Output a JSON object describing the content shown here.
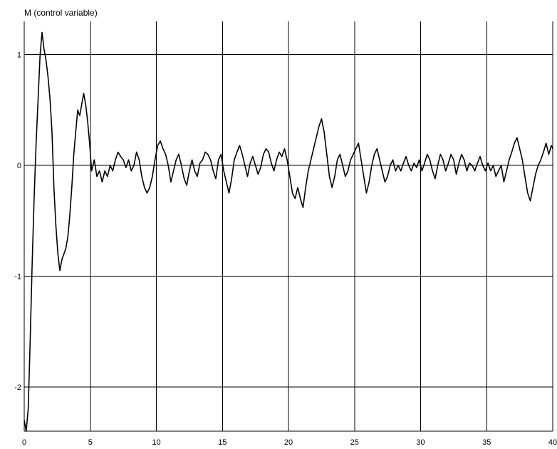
{
  "chart_data": {
    "type": "line",
    "ylabel": "M (control variable)",
    "xlim": [
      0,
      40
    ],
    "ylim": [
      -2.4,
      1.3
    ],
    "grid": true,
    "x_ticks": [
      0,
      5,
      10,
      15,
      20,
      25,
      30,
      35,
      40
    ],
    "x_tick_labels": [
      "0",
      "5",
      "10",
      "15",
      "20",
      "25",
      "30",
      "35",
      "40"
    ],
    "y_ticks": [
      1,
      0,
      -1,
      -2
    ],
    "y_tick_labels": [
      "1",
      "0",
      "-1",
      "-2"
    ],
    "series": [
      {
        "color": "#000000",
        "points": [
          [
            0.0,
            -2.3
          ],
          [
            0.15,
            -2.4
          ],
          [
            0.3,
            -2.2
          ],
          [
            0.45,
            -1.6
          ],
          [
            0.6,
            -0.9
          ],
          [
            0.75,
            -0.3
          ],
          [
            0.9,
            0.2
          ],
          [
            1.05,
            0.6
          ],
          [
            1.2,
            1.0
          ],
          [
            1.35,
            1.2
          ],
          [
            1.5,
            1.05
          ],
          [
            1.65,
            0.95
          ],
          [
            1.8,
            0.8
          ],
          [
            1.95,
            0.6
          ],
          [
            2.1,
            0.3
          ],
          [
            2.25,
            -0.2
          ],
          [
            2.4,
            -0.55
          ],
          [
            2.55,
            -0.8
          ],
          [
            2.7,
            -0.95
          ],
          [
            2.85,
            -0.85
          ],
          [
            3.0,
            -0.8
          ],
          [
            3.15,
            -0.75
          ],
          [
            3.3,
            -0.65
          ],
          [
            3.45,
            -0.45
          ],
          [
            3.6,
            -0.2
          ],
          [
            3.75,
            0.1
          ],
          [
            3.9,
            0.3
          ],
          [
            4.05,
            0.5
          ],
          [
            4.2,
            0.45
          ],
          [
            4.35,
            0.55
          ],
          [
            4.5,
            0.65
          ],
          [
            4.65,
            0.55
          ],
          [
            4.8,
            0.4
          ],
          [
            4.95,
            0.2
          ],
          [
            5.1,
            -0.05
          ],
          [
            5.3,
            0.05
          ],
          [
            5.5,
            -0.1
          ],
          [
            5.7,
            -0.05
          ],
          [
            5.9,
            -0.15
          ],
          [
            6.1,
            -0.05
          ],
          [
            6.3,
            -0.1
          ],
          [
            6.5,
            0.0
          ],
          [
            6.7,
            -0.05
          ],
          [
            6.9,
            0.05
          ],
          [
            7.1,
            0.12
          ],
          [
            7.3,
            0.08
          ],
          [
            7.5,
            0.05
          ],
          [
            7.7,
            -0.02
          ],
          [
            7.9,
            0.05
          ],
          [
            8.1,
            -0.05
          ],
          [
            8.3,
            0.0
          ],
          [
            8.5,
            0.12
          ],
          [
            8.7,
            0.05
          ],
          [
            8.9,
            -0.1
          ],
          [
            9.1,
            -0.2
          ],
          [
            9.3,
            -0.25
          ],
          [
            9.5,
            -0.2
          ],
          [
            9.7,
            -0.1
          ],
          [
            9.9,
            0.05
          ],
          [
            10.1,
            0.18
          ],
          [
            10.3,
            0.22
          ],
          [
            10.5,
            0.15
          ],
          [
            10.7,
            0.1
          ],
          [
            10.9,
            0.0
          ],
          [
            11.1,
            -0.15
          ],
          [
            11.3,
            -0.05
          ],
          [
            11.5,
            0.05
          ],
          [
            11.7,
            0.1
          ],
          [
            11.9,
            0.0
          ],
          [
            12.1,
            -0.12
          ],
          [
            12.3,
            -0.18
          ],
          [
            12.5,
            -0.05
          ],
          [
            12.7,
            0.05
          ],
          [
            12.9,
            -0.05
          ],
          [
            13.1,
            -0.1
          ],
          [
            13.3,
            0.02
          ],
          [
            13.5,
            0.05
          ],
          [
            13.7,
            0.12
          ],
          [
            13.9,
            0.1
          ],
          [
            14.1,
            0.05
          ],
          [
            14.3,
            -0.05
          ],
          [
            14.5,
            -0.12
          ],
          [
            14.7,
            0.05
          ],
          [
            14.9,
            0.1
          ],
          [
            15.1,
            -0.05
          ],
          [
            15.3,
            -0.15
          ],
          [
            15.5,
            -0.25
          ],
          [
            15.7,
            -0.12
          ],
          [
            15.9,
            0.05
          ],
          [
            16.1,
            0.12
          ],
          [
            16.3,
            0.18
          ],
          [
            16.5,
            0.1
          ],
          [
            16.7,
            0.0
          ],
          [
            16.9,
            -0.1
          ],
          [
            17.1,
            0.02
          ],
          [
            17.3,
            0.08
          ],
          [
            17.5,
            0.0
          ],
          [
            17.7,
            -0.08
          ],
          [
            17.9,
            -0.02
          ],
          [
            18.1,
            0.1
          ],
          [
            18.3,
            0.15
          ],
          [
            18.5,
            0.12
          ],
          [
            18.7,
            0.02
          ],
          [
            18.9,
            -0.05
          ],
          [
            19.1,
            0.05
          ],
          [
            19.3,
            0.12
          ],
          [
            19.5,
            0.08
          ],
          [
            19.7,
            0.15
          ],
          [
            19.9,
            0.05
          ],
          [
            20.1,
            -0.1
          ],
          [
            20.3,
            -0.25
          ],
          [
            20.5,
            -0.3
          ],
          [
            20.7,
            -0.2
          ],
          [
            20.9,
            -0.3
          ],
          [
            21.1,
            -0.38
          ],
          [
            21.3,
            -0.2
          ],
          [
            21.5,
            -0.05
          ],
          [
            21.7,
            0.05
          ],
          [
            21.9,
            0.15
          ],
          [
            22.1,
            0.25
          ],
          [
            22.3,
            0.35
          ],
          [
            22.5,
            0.42
          ],
          [
            22.7,
            0.3
          ],
          [
            22.9,
            0.1
          ],
          [
            23.1,
            -0.1
          ],
          [
            23.3,
            -0.2
          ],
          [
            23.5,
            -0.1
          ],
          [
            23.7,
            0.05
          ],
          [
            23.9,
            0.1
          ],
          [
            24.1,
            0.0
          ],
          [
            24.3,
            -0.1
          ],
          [
            24.5,
            -0.05
          ],
          [
            24.7,
            0.05
          ],
          [
            24.9,
            0.1
          ],
          [
            25.1,
            0.15
          ],
          [
            25.3,
            0.2
          ],
          [
            25.5,
            0.05
          ],
          [
            25.7,
            -0.1
          ],
          [
            25.9,
            -0.25
          ],
          [
            26.1,
            -0.15
          ],
          [
            26.3,
            0.0
          ],
          [
            26.5,
            0.1
          ],
          [
            26.7,
            0.15
          ],
          [
            26.9,
            0.05
          ],
          [
            27.1,
            -0.05
          ],
          [
            27.3,
            -0.15
          ],
          [
            27.5,
            -0.1
          ],
          [
            27.7,
            0.0
          ],
          [
            27.9,
            0.05
          ],
          [
            28.1,
            -0.05
          ],
          [
            28.3,
            0.0
          ],
          [
            28.5,
            -0.05
          ],
          [
            28.7,
            0.02
          ],
          [
            28.9,
            0.08
          ],
          [
            29.1,
            0.0
          ],
          [
            29.3,
            -0.05
          ],
          [
            29.5,
            0.02
          ],
          [
            29.7,
            -0.02
          ],
          [
            29.9,
            0.05
          ],
          [
            30.1,
            -0.05
          ],
          [
            30.3,
            0.02
          ],
          [
            30.5,
            0.1
          ],
          [
            30.7,
            0.05
          ],
          [
            30.9,
            -0.05
          ],
          [
            31.1,
            -0.12
          ],
          [
            31.3,
            0.0
          ],
          [
            31.5,
            0.1
          ],
          [
            31.7,
            0.05
          ],
          [
            31.9,
            -0.05
          ],
          [
            32.1,
            0.02
          ],
          [
            32.3,
            0.1
          ],
          [
            32.5,
            0.05
          ],
          [
            32.7,
            -0.08
          ],
          [
            32.9,
            0.02
          ],
          [
            33.1,
            0.1
          ],
          [
            33.3,
            0.05
          ],
          [
            33.5,
            -0.05
          ],
          [
            33.7,
            0.02
          ],
          [
            33.9,
            0.0
          ],
          [
            34.1,
            -0.05
          ],
          [
            34.3,
            0.02
          ],
          [
            34.5,
            0.08
          ],
          [
            34.7,
            0.0
          ],
          [
            34.9,
            -0.05
          ],
          [
            35.1,
            0.02
          ],
          [
            35.3,
            -0.05
          ],
          [
            35.5,
            0.0
          ],
          [
            35.7,
            -0.1
          ],
          [
            35.9,
            -0.05
          ],
          [
            36.1,
            0.0
          ],
          [
            36.3,
            -0.15
          ],
          [
            36.5,
            -0.05
          ],
          [
            36.7,
            0.05
          ],
          [
            36.9,
            0.12
          ],
          [
            37.1,
            0.2
          ],
          [
            37.3,
            0.25
          ],
          [
            37.5,
            0.15
          ],
          [
            37.7,
            0.05
          ],
          [
            37.9,
            -0.1
          ],
          [
            38.1,
            -0.25
          ],
          [
            38.3,
            -0.32
          ],
          [
            38.5,
            -0.2
          ],
          [
            38.7,
            -0.08
          ],
          [
            38.9,
            0.0
          ],
          [
            39.1,
            0.05
          ],
          [
            39.3,
            0.12
          ],
          [
            39.5,
            0.2
          ],
          [
            39.7,
            0.1
          ],
          [
            39.9,
            0.18
          ],
          [
            40.0,
            0.15
          ]
        ]
      }
    ]
  }
}
